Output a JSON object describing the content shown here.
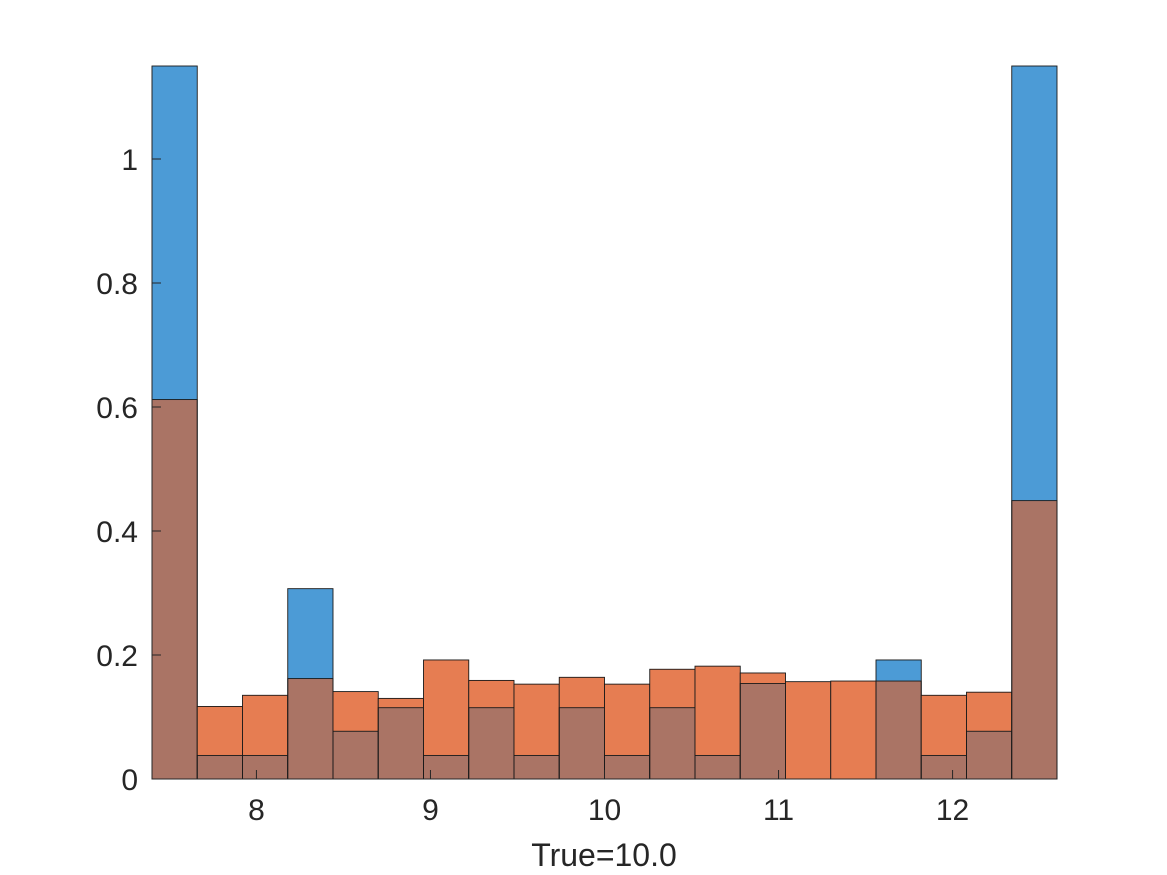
{
  "chart_data": {
    "type": "bar",
    "subtype": "overlaid-histogram",
    "xlabel": "True=10.0",
    "ylabel": "",
    "title": "",
    "xlim": [
      7.4,
      12.6
    ],
    "ylim": [
      0,
      1.15
    ],
    "xticks": [
      8,
      9,
      10,
      11,
      12
    ],
    "xtick_labels": [
      "8",
      "9",
      "10",
      "11",
      "12"
    ],
    "yticks": [
      0,
      0.2,
      0.4,
      0.6,
      0.8,
      1
    ],
    "ytick_labels": [
      "0",
      "0.2",
      "0.4",
      "0.6",
      "0.8",
      "1"
    ],
    "bin_edges": [
      7.4,
      7.66,
      7.92,
      8.18,
      8.44,
      8.7,
      8.96,
      9.22,
      9.48,
      9.74,
      10.0,
      10.26,
      10.52,
      10.78,
      11.04,
      11.3,
      11.56,
      11.82,
      12.08,
      12.34,
      12.6
    ],
    "series": [
      {
        "color": "#4c9bd6",
        "values": [
          1.15,
          0.038,
          0.038,
          0.307,
          0.077,
          0.115,
          0.038,
          0.115,
          0.038,
          0.115,
          0.038,
          0.115,
          0.038,
          0.154,
          0.0,
          0.0,
          0.192,
          0.038,
          0.077,
          1.15
        ]
      },
      {
        "color": "#e67d52",
        "values": [
          0.612,
          0.117,
          0.135,
          0.162,
          0.141,
          0.13,
          0.192,
          0.159,
          0.153,
          0.164,
          0.153,
          0.177,
          0.182,
          0.171,
          0.157,
          0.158,
          0.158,
          0.135,
          0.14,
          0.449
        ]
      }
    ],
    "overlap_color": "#aa7465",
    "grid": false,
    "legend": false
  }
}
